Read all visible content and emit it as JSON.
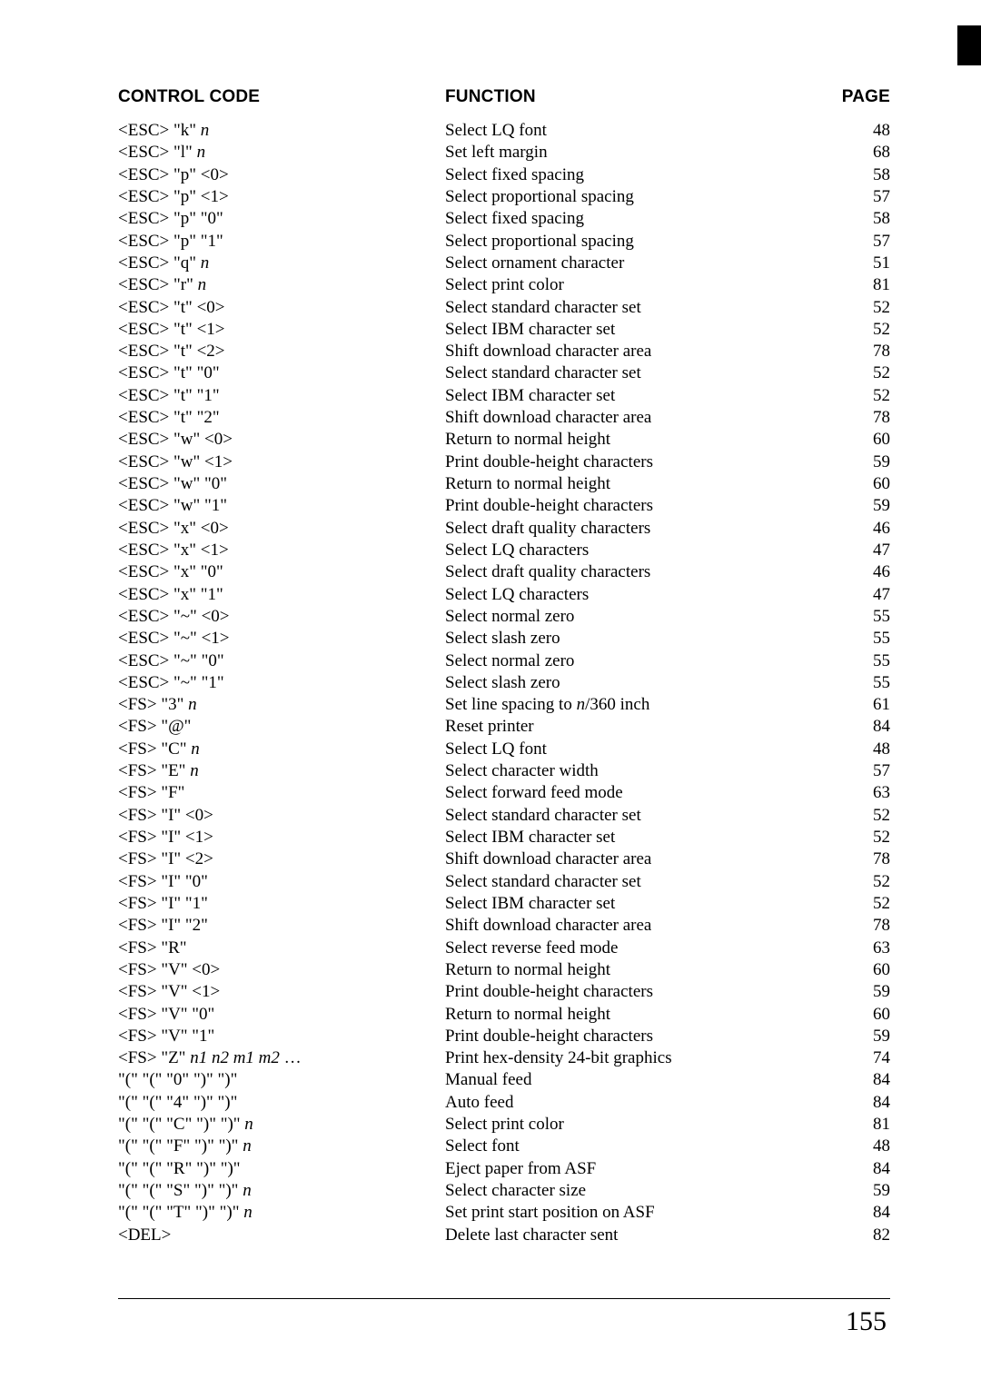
{
  "header": {
    "code": "CONTROL CODE",
    "func": "FUNCTION",
    "page": "PAGE"
  },
  "rows": [
    {
      "code": "<ESC> \"k\" <i>n</i>",
      "func": "Select LQ font",
      "page": "48"
    },
    {
      "code": "<ESC> \"l\" <i>n</i>",
      "func": "Set left margin",
      "page": "68"
    },
    {
      "code": "<ESC> \"p\" <0>",
      "func": "Select fixed spacing",
      "page": "58"
    },
    {
      "code": "<ESC> \"p\" <1>",
      "func": "Select proportional spacing",
      "page": "57"
    },
    {
      "code": "<ESC> \"p\" \"0\"",
      "func": "Select fixed spacing",
      "page": "58"
    },
    {
      "code": "<ESC> \"p\" \"1\"",
      "func": "Select proportional spacing",
      "page": "57"
    },
    {
      "code": "<ESC> \"q\" <i>n</i>",
      "func": "Select ornament character",
      "page": "51"
    },
    {
      "code": "<ESC> \"r\" <i>n</i>",
      "func": "Select print color",
      "page": "81"
    },
    {
      "code": "<ESC> \"t\" <0>",
      "func": "Select standard character set",
      "page": "52"
    },
    {
      "code": "<ESC> \"t\" <1>",
      "func": "Select IBM character set",
      "page": "52"
    },
    {
      "code": "<ESC> \"t\" <2>",
      "func": "Shift download character area",
      "page": "78"
    },
    {
      "code": "<ESC> \"t\" \"0\"",
      "func": "Select standard character set",
      "page": "52"
    },
    {
      "code": "<ESC> \"t\" \"1\"",
      "func": "Select IBM character set",
      "page": "52"
    },
    {
      "code": "<ESC> \"t\" \"2\"",
      "func": "Shift download character area",
      "page": "78"
    },
    {
      "code": "<ESC> \"w\" <0>",
      "func": "Return to normal height",
      "page": "60"
    },
    {
      "code": "<ESC> \"w\" <1>",
      "func": "Print double-height characters",
      "page": "59"
    },
    {
      "code": "<ESC> \"w\" \"0\"",
      "func": "Return to normal height",
      "page": "60"
    },
    {
      "code": "<ESC> \"w\" \"1\"",
      "func": "Print double-height characters",
      "page": "59"
    },
    {
      "code": "<ESC> \"x\" <0>",
      "func": "Select draft quality characters",
      "page": "46"
    },
    {
      "code": "<ESC> \"x\" <1>",
      "func": "Select LQ characters",
      "page": "47"
    },
    {
      "code": "<ESC> \"x\" \"0\"",
      "func": "Select draft quality characters",
      "page": "46"
    },
    {
      "code": "<ESC> \"x\" \"1\"",
      "func": "Select LQ characters",
      "page": "47"
    },
    {
      "code": "<ESC> \"~\" <0>",
      "func": "Select normal zero",
      "page": "55"
    },
    {
      "code": "<ESC> \"~\" <1>",
      "func": "Select slash zero",
      "page": "55"
    },
    {
      "code": "<ESC> \"~\" \"0\"",
      "func": "Select normal zero",
      "page": "55"
    },
    {
      "code": "<ESC> \"~\" \"1\"",
      "func": "Select slash zero",
      "page": "55"
    },
    {
      "code": "<FS> \"3\" <i>n</i>",
      "func": "Set line spacing to <i>n</i>/360 inch",
      "page": "61"
    },
    {
      "code": "<FS> \"@\"",
      "func": "Reset printer",
      "page": "84"
    },
    {
      "code": "<FS> \"C\" <i>n</i>",
      "func": "Select LQ font",
      "page": "48"
    },
    {
      "code": "<FS> \"E\" <i>n</i>",
      "func": "Select character width",
      "page": "57"
    },
    {
      "code": "<FS> \"F\"",
      "func": "Select forward feed mode",
      "page": "63"
    },
    {
      "code": "<FS> \"I\" <0>",
      "func": "Select standard character set",
      "page": "52"
    },
    {
      "code": "<FS> \"I\" <1>",
      "func": "Select IBM character set",
      "page": "52"
    },
    {
      "code": "<FS> \"I\" <2>",
      "func": "Shift download character area",
      "page": "78"
    },
    {
      "code": "<FS> \"I\" \"0\"",
      "func": "Select standard character set",
      "page": "52"
    },
    {
      "code": "<FS> \"I\" \"1\"",
      "func": "Select IBM character set",
      "page": "52"
    },
    {
      "code": "<FS> \"I\" \"2\"",
      "func": "Shift download character area",
      "page": "78"
    },
    {
      "code": "<FS> \"R\"",
      "func": "Select reverse feed mode",
      "page": "63"
    },
    {
      "code": "<FS> \"V\" <0>",
      "func": "Return to normal height",
      "page": "60"
    },
    {
      "code": "<FS> \"V\" <1>",
      "func": "Print double-height characters",
      "page": "59"
    },
    {
      "code": "<FS> \"V\" \"0\"",
      "func": "Return to normal height",
      "page": "60"
    },
    {
      "code": "<FS> \"V\" \"1\"",
      "func": "Print double-height characters",
      "page": "59"
    },
    {
      "code": "<FS> \"Z\" <i>n1 n2 m1 m2</i> …",
      "func": "Print hex-density 24-bit graphics",
      "page": "74"
    },
    {
      "code": "\"(\" \"(\" \"0\" \")\" \")\"",
      "func": "Manual feed",
      "page": "84"
    },
    {
      "code": "\"(\" \"(\" \"4\" \")\" \")\"",
      "func": "Auto feed",
      "page": "84"
    },
    {
      "code": "\"(\" \"(\" \"C\" \")\" \")\" <i>n</i>",
      "func": "Select print color",
      "page": "81"
    },
    {
      "code": "\"(\" \"(\" \"F\" \")\" \")\" <i>n</i>",
      "func": "Select font",
      "page": "48"
    },
    {
      "code": "\"(\" \"(\" \"R\" \")\" \")\"",
      "func": "Eject paper from ASF",
      "page": "84"
    },
    {
      "code": "\"(\" \"(\" \"S\" \")\" \")\" <i>n</i>",
      "func": "Select character size",
      "page": "59"
    },
    {
      "code": "\"(\" \"(\" \"T\" \")\" \")\" <i>n</i>",
      "func": "Set print start position on ASF",
      "page": "84"
    },
    {
      "code": "<DEL>",
      "func": "Delete last character sent",
      "page": "82"
    }
  ],
  "pageNumber": "155"
}
